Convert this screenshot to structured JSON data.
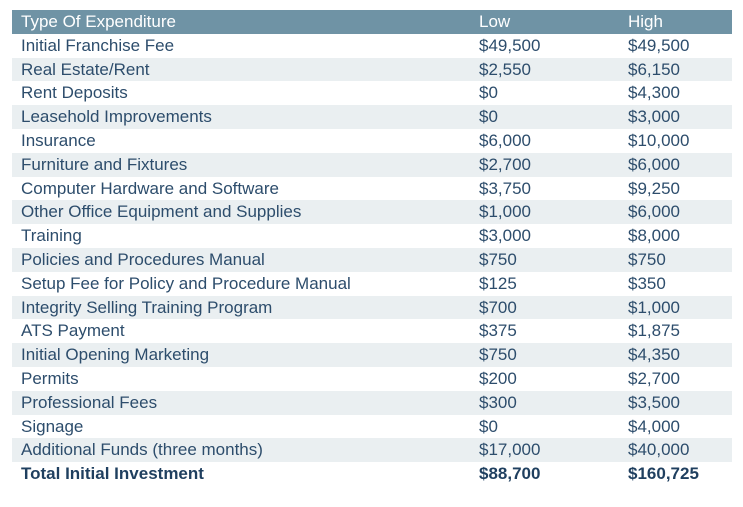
{
  "table": {
    "headers": {
      "type": "Type Of Expenditure",
      "low": "Low",
      "high": "High"
    },
    "rows": [
      {
        "type": "Initial Franchise Fee",
        "low": "$49,500",
        "high": "$49,500"
      },
      {
        "type": "Real Estate/Rent",
        "low": "$2,550",
        "high": "$6,150"
      },
      {
        "type": "Rent Deposits",
        "low": "$0",
        "high": "$4,300"
      },
      {
        "type": "Leasehold Improvements",
        "low": "$0",
        "high": "$3,000"
      },
      {
        "type": "Insurance",
        "low": "$6,000",
        "high": "$10,000"
      },
      {
        "type": "Furniture and Fixtures",
        "low": "$2,700",
        "high": "$6,000"
      },
      {
        "type": "Computer Hardware and Software",
        "low": "$3,750",
        "high": "$9,250"
      },
      {
        "type": "Other Office Equipment and Supplies",
        "low": "$1,000",
        "high": "$6,000"
      },
      {
        "type": "Training",
        "low": "$3,000",
        "high": "$8,000"
      },
      {
        "type": "Policies and Procedures Manual",
        "low": "$750",
        "high": "$750"
      },
      {
        "type": "Setup Fee for Policy and Procedure Manual",
        "low": "$125",
        "high": "$350"
      },
      {
        "type": "Integrity Selling Training Program",
        "low": "$700",
        "high": "$1,000"
      },
      {
        "type": "ATS Payment",
        "low": "$375",
        "high": "$1,875"
      },
      {
        "type": "Initial Opening Marketing",
        "low": "$750",
        "high": "$4,350"
      },
      {
        "type": "Permits",
        "low": "$200",
        "high": "$2,700"
      },
      {
        "type": "Professional Fees",
        "low": "$300",
        "high": "$3,500"
      },
      {
        "type": "Signage",
        "low": "$0",
        "high": "$4,000"
      },
      {
        "type": "Additional Funds (three months)",
        "low": "$17,000",
        "high": "$40,000"
      }
    ],
    "total": {
      "type": "Total Initial Investment",
      "low": "$88,700",
      "high": "$160,725"
    }
  },
  "colors": {
    "header_bg": "#6f93a5",
    "stripe_bg": "#eaeff1",
    "text": "#2d4d6c"
  }
}
